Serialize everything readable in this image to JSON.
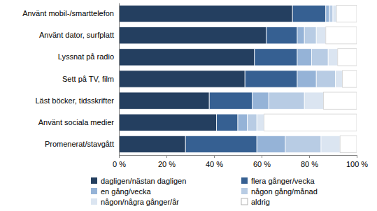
{
  "chart_data": {
    "type": "bar",
    "orientation": "horizontal",
    "stacked": true,
    "grid": false,
    "legend": "bottom",
    "data_labels": false,
    "categories": [
      "Använt mobil-/smarttelefon",
      "Använt dator, surfplatt",
      "Lyssnat på radio",
      "Sett på TV, film",
      "Läst böcker, tidsskrifter",
      "Använt sociala medier",
      "Promenerat/stavgått"
    ],
    "series": [
      {
        "name": "dagligen/nästan dagligen",
        "color": "#243f60",
        "values": [
          73,
          62,
          57,
          53,
          38,
          41,
          28
        ]
      },
      {
        "name": "flera gånger/vecka",
        "color": "#366092",
        "values": [
          14,
          13,
          18,
          22,
          18,
          9,
          30
        ]
      },
      {
        "name": "en gång/vecka",
        "color": "#95b3d7",
        "values": [
          1.5,
          3,
          6,
          8,
          7,
          4,
          12
        ]
      },
      {
        "name": "någon gång/månad",
        "color": "#b8cce4",
        "values": [
          1.5,
          5,
          7,
          8,
          15,
          4,
          15
        ]
      },
      {
        "name": "någon/några gånger/år",
        "color": "#dbe5f1",
        "values": [
          1.5,
          4,
          4,
          3,
          8,
          3,
          8
        ]
      },
      {
        "name": "aldrig",
        "color": "#ffffff",
        "values": [
          8.5,
          13,
          8,
          6,
          14,
          39,
          7
        ]
      }
    ],
    "xlim": [
      0,
      100
    ],
    "xticks": [
      {
        "value": 0,
        "label": "0 %"
      },
      {
        "value": 20,
        "label": "20 %"
      },
      {
        "value": 40,
        "label": "40 %"
      },
      {
        "value": 60,
        "label": "60 %"
      },
      {
        "value": 80,
        "label": "80 %"
      },
      {
        "value": 100,
        "label": "100 %"
      }
    ]
  }
}
